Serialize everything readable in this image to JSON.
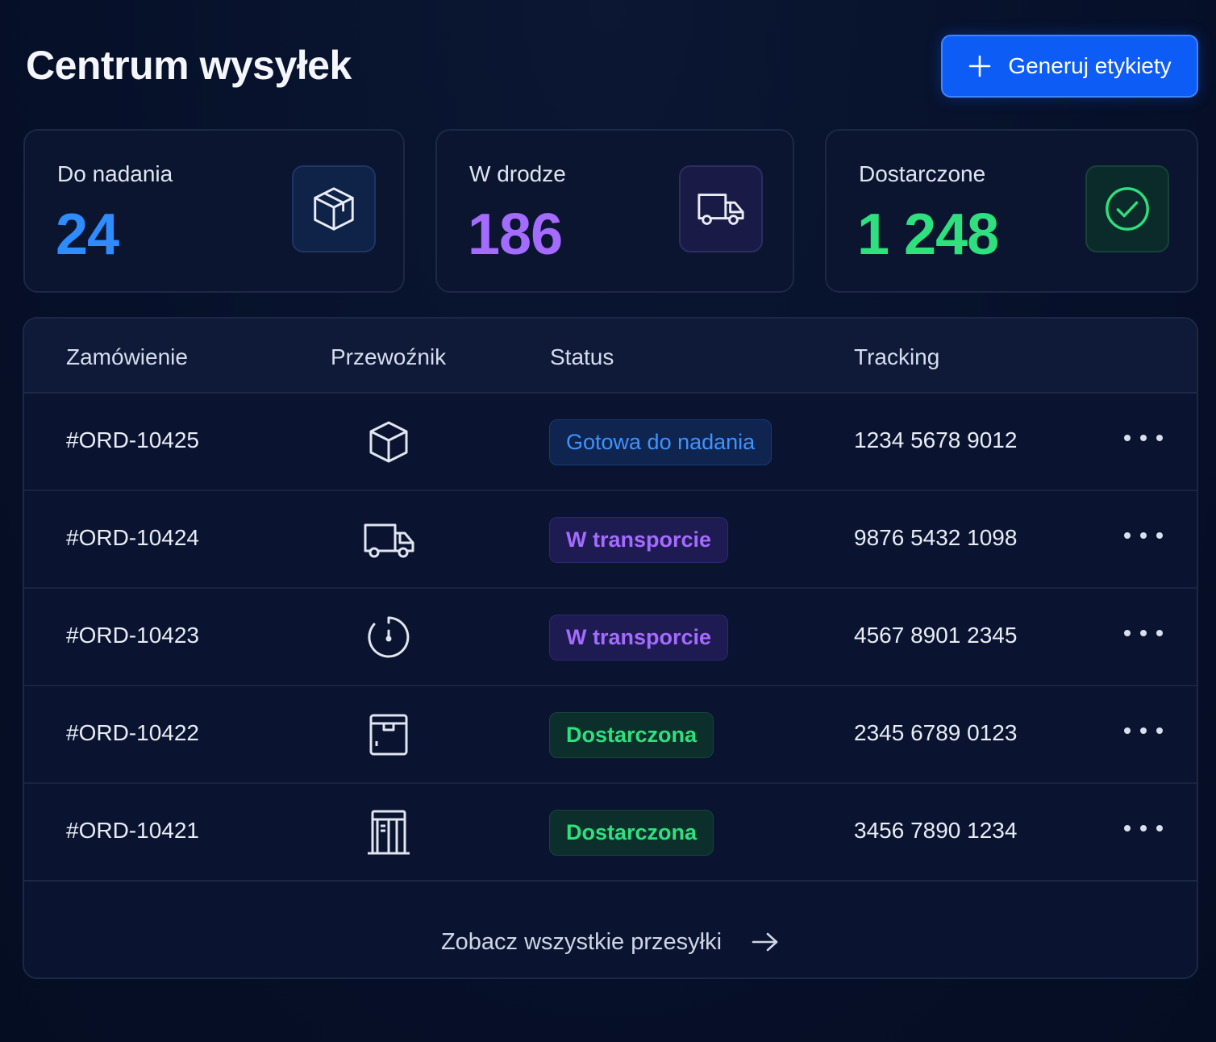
{
  "header": {
    "title": "Centrum wysyłek",
    "generate_button": "Generuj etykiety",
    "generate_icon": "plus-icon"
  },
  "stats": [
    {
      "label": "Do nadania",
      "value": "24",
      "icon": "box-icon",
      "color": "#2f8cff"
    },
    {
      "label": "W drodze",
      "value": "186",
      "icon": "truck-icon",
      "color": "#a46bff"
    },
    {
      "label": "Dostarczone",
      "value": "1 248",
      "icon": "check-circle-icon",
      "color": "#2ee07e"
    }
  ],
  "table": {
    "columns": [
      "Zamówienie",
      "Przewoźnik",
      "Status",
      "Tracking"
    ],
    "rows": [
      {
        "order": "#ORD-10425",
        "carrier_icon": "box-icon",
        "status": "Gotowa do nadania",
        "status_type": "ready",
        "tracking": "1234 5678 9012"
      },
      {
        "order": "#ORD-10424",
        "carrier_icon": "truck-icon",
        "status": "W transporcie",
        "status_type": "transit",
        "tracking": "9876 5432 1098"
      },
      {
        "order": "#ORD-10423",
        "carrier_icon": "timer-icon",
        "status": "W transporcie",
        "status_type": "transit",
        "tracking": "4567 8901 2345"
      },
      {
        "order": "#ORD-10422",
        "carrier_icon": "parcel-locker-icon",
        "status": "Dostarczona",
        "status_type": "delivered",
        "tracking": "2345 6789 0123"
      },
      {
        "order": "#ORD-10421",
        "carrier_icon": "pickup-point-icon",
        "status": "Dostarczona",
        "status_type": "delivered",
        "tracking": "3456 7890 1234"
      }
    ],
    "row_menu_icon": "more-horizontal-icon"
  },
  "footer": {
    "link": "Zobacz wszystkie przesyłki",
    "icon": "arrow-right-icon"
  },
  "colors": {
    "accent": "#0d5cf5",
    "ready": "#2f8cff",
    "transit": "#a46bff",
    "delivered": "#2ee07e",
    "background": "#061029"
  }
}
